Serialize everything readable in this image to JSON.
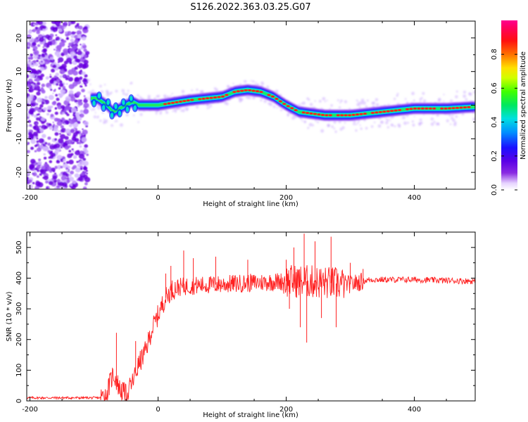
{
  "title": "S126.2022.363.03.25.G07",
  "chart_data": [
    {
      "type": "heatmap",
      "xlabel": "Height of straight line (km)",
      "ylabel": "Frequency (Hz)",
      "xlim": [
        -205,
        495
      ],
      "ylim": [
        -25,
        25
      ],
      "xticks": [
        "-200",
        "0",
        "200",
        "400"
      ],
      "xtick_values": [
        -200,
        0,
        200,
        400
      ],
      "yticks": [
        "-20",
        "-10",
        "0",
        "10",
        "20"
      ],
      "ytick_values": [
        -20,
        -10,
        0,
        10,
        20
      ],
      "colorbar": {
        "label": "Normalized spectral amplitude",
        "range": [
          0,
          1
        ],
        "ticks": [
          "0.0",
          "0.2",
          "0.4",
          "0.6",
          "0.8"
        ],
        "tick_values": [
          0.0,
          0.2,
          0.4,
          0.6,
          0.8
        ],
        "colormap": "rainbow (white-purple-blue-cyan-green-yellow-red-magenta)"
      },
      "ridge_center_hz": {
        "x": [
          -95,
          -80,
          -70,
          -60,
          -50,
          -40,
          -30,
          0,
          50,
          100,
          120,
          140,
          160,
          180,
          200,
          220,
          260,
          300,
          350,
          400,
          450,
          495
        ],
        "y": [
          2,
          0,
          -2,
          -1,
          0,
          1,
          0,
          0,
          1.5,
          2.5,
          4,
          4.5,
          4,
          2.5,
          0,
          -2,
          -3,
          -3,
          -2,
          -1,
          -1,
          -0.5
        ]
      },
      "noise_region_km": [
        -205,
        -110
      ]
    },
    {
      "type": "line",
      "xlabel": "Height of straight line (km)",
      "ylabel": "SNR (10 * v/v)",
      "xlim": [
        -205,
        495
      ],
      "ylim": [
        0,
        550
      ],
      "xticks": [
        "-200",
        "0",
        "200",
        "400"
      ],
      "xtick_values": [
        -200,
        0,
        200,
        400
      ],
      "yticks": [
        "0",
        "100",
        "200",
        "300",
        "400",
        "500"
      ],
      "ytick_values": [
        0,
        100,
        200,
        300,
        400,
        500
      ],
      "line_color": "#ff2020",
      "envelope": {
        "x": [
          -205,
          -90,
          -80,
          -70,
          -60,
          -50,
          -40,
          -30,
          -20,
          -10,
          0,
          10,
          20,
          30,
          50,
          100,
          150,
          200,
          230,
          260,
          300,
          330,
          400,
          495
        ],
        "y": [
          10,
          10,
          25,
          90,
          40,
          20,
          60,
          120,
          160,
          230,
          280,
          330,
          360,
          370,
          375,
          380,
          385,
          390,
          390,
          385,
          380,
          395,
          395,
          390
        ]
      },
      "spikes": {
        "x": [
          -65,
          -35,
          12,
          20,
          40,
          55,
          90,
          140,
          200,
          205,
          212,
          222,
          228,
          232,
          245,
          255,
          270,
          278,
          300,
          320
        ],
        "y": [
          222,
          195,
          415,
          440,
          490,
          465,
          470,
          460,
          460,
          300,
          500,
          240,
          545,
          190,
          520,
          270,
          535,
          240,
          450,
          430
        ]
      }
    }
  ]
}
